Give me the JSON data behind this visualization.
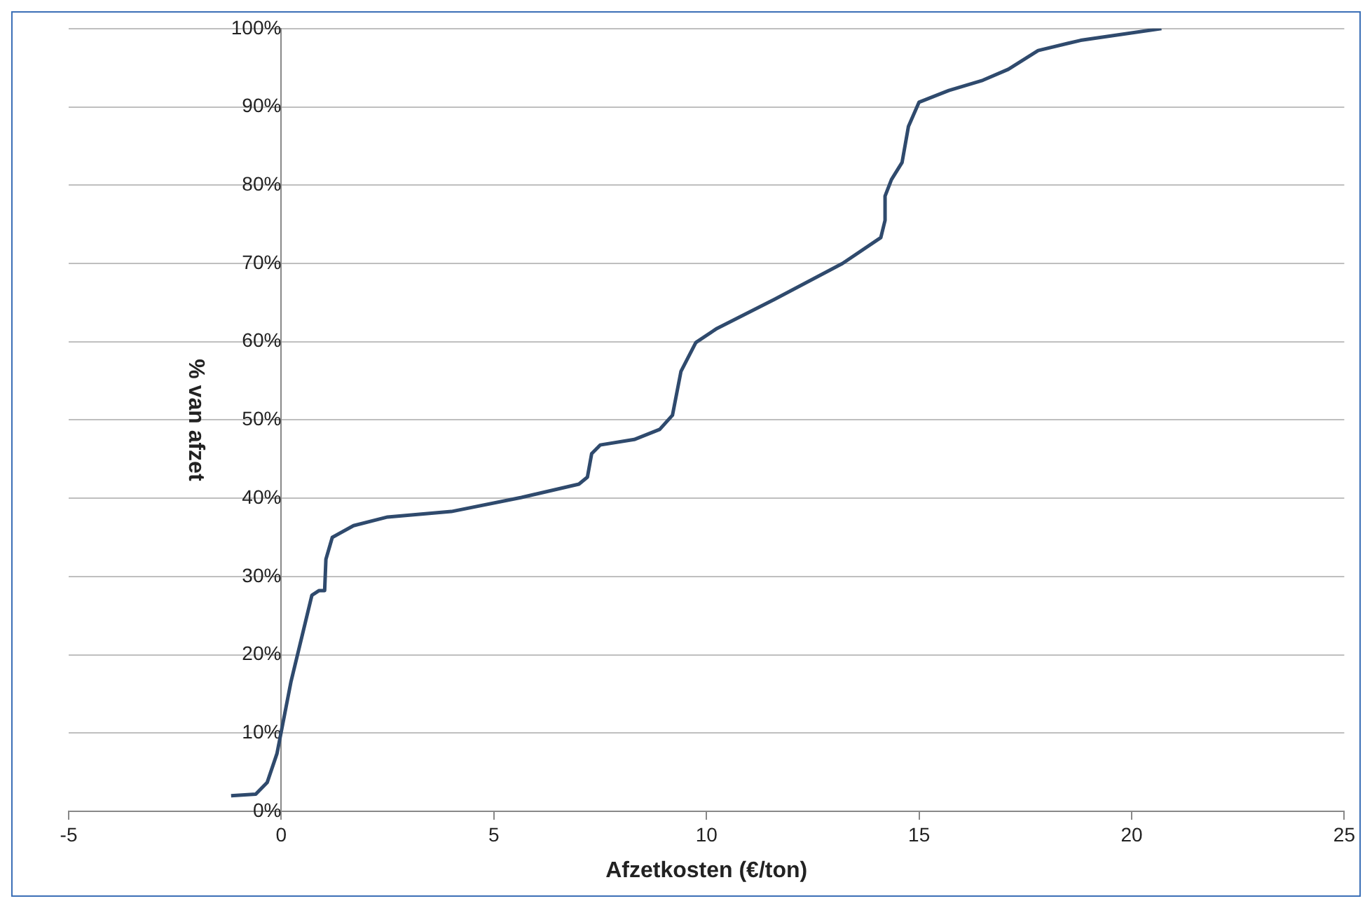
{
  "chart_data": {
    "type": "line",
    "xlabel": "Afzetkosten (€/ton)",
    "ylabel": "% van afzet",
    "x": [
      -1.18,
      -0.6,
      -0.33,
      -0.1,
      0.23,
      0.56,
      0.72,
      0.89,
      1.02,
      1.05,
      1.2,
      1.7,
      2.5,
      4.0,
      5.65,
      7.0,
      7.2,
      7.3,
      7.5,
      8.3,
      8.9,
      9.2,
      9.4,
      9.75,
      10.25,
      11.6,
      13.2,
      14.1,
      14.2,
      14.2,
      14.35,
      14.6,
      14.75,
      15.0,
      15.7,
      16.5,
      17.1,
      17.8,
      18.8,
      20.7
    ],
    "series": [
      {
        "color": "#2f4a6d",
        "values": [
          2.0,
          2.2,
          3.7,
          7.4,
          16.6,
          24,
          27.6,
          28.2,
          28.2,
          32.2,
          35,
          36.5,
          37.6,
          38.3,
          40.1,
          41.8,
          42.7,
          45.7,
          46.8,
          47.5,
          48.8,
          50.6,
          56.2,
          59.9,
          61.7,
          65.4,
          70,
          73.3,
          75.5,
          78.6,
          80.7,
          82.9,
          87.5,
          90.6,
          92.1,
          93.4,
          94.8,
          97.2,
          98.5,
          100
        ]
      }
    ],
    "xlim": [
      -5,
      25
    ],
    "xticks": [
      -5,
      0,
      5,
      10,
      15,
      20,
      25
    ],
    "ylim": [
      0,
      100
    ],
    "yticks": [
      {
        "value": 0,
        "label": "0%"
      },
      {
        "value": 10,
        "label": "10%"
      },
      {
        "value": 20,
        "label": "20%"
      },
      {
        "value": 30,
        "label": "30%"
      },
      {
        "value": 40,
        "label": "40%"
      },
      {
        "value": 50,
        "label": "50%"
      },
      {
        "value": 60,
        "label": "60%"
      },
      {
        "value": 70,
        "label": "70%"
      },
      {
        "value": 80,
        "label": "80%"
      },
      {
        "value": 90,
        "label": "90%"
      },
      {
        "value": 100,
        "label": "100%"
      }
    ],
    "grid": "y",
    "legend": false,
    "marker": "none",
    "line_style": "solid"
  }
}
